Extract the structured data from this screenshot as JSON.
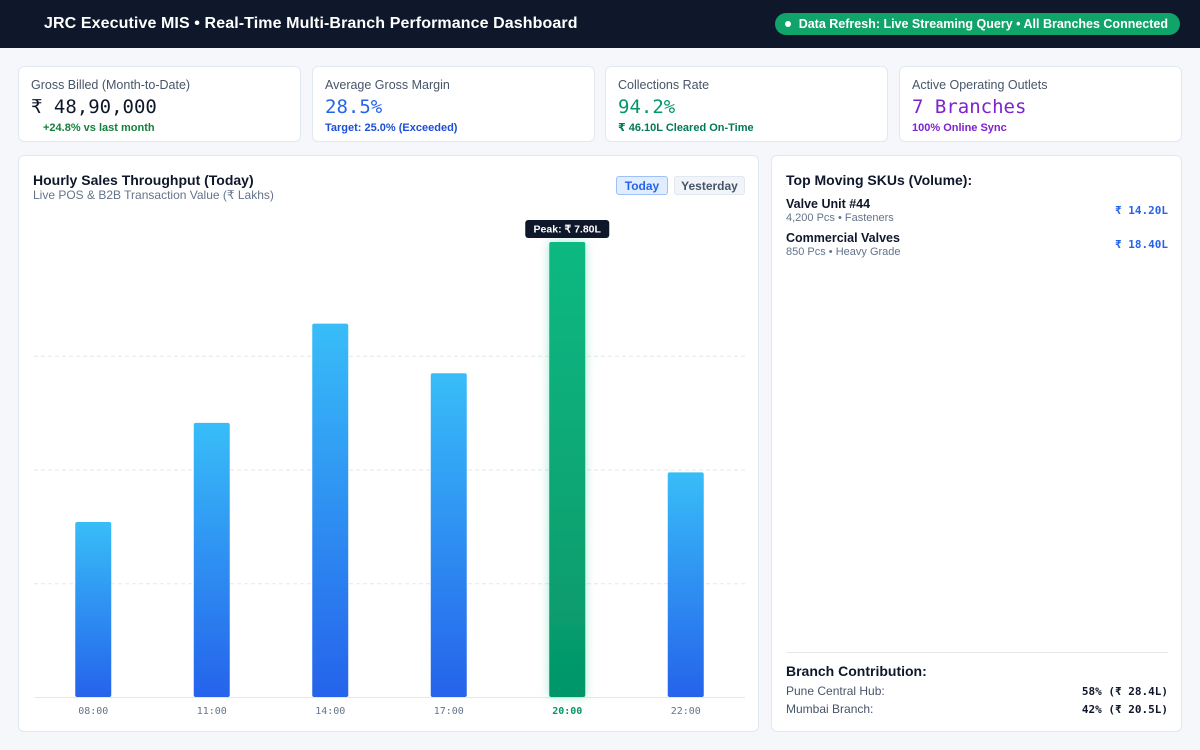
{
  "header": {
    "title": "JRC Executive MIS • Real-Time Multi-Branch Performance Dashboard",
    "status": "Data Refresh: Live Streaming Query • All Branches Connected"
  },
  "kpis": [
    {
      "label": "Gross Billed (Month-to-Date)",
      "value": "₹ 48,90,000",
      "sub": "+24.8% vs last month",
      "value_color": "#0f172a",
      "sub_color": "#15803d"
    },
    {
      "label": "Average Gross Margin",
      "value": "28.5%",
      "sub": "Target: 25.0% (Exceeded)",
      "value_color": "#2563eb",
      "sub_color": "#1d4ed8"
    },
    {
      "label": "Collections Rate",
      "value": "94.2%",
      "sub": "₹ 46.10L Cleared On-Time",
      "value_color": "#059669",
      "sub_color": "#047857"
    },
    {
      "label": "Active Operating Outlets",
      "value": "7 Branches",
      "sub": "100% Online Sync",
      "value_color": "#7e22ce",
      "sub_color": "#7e22ce"
    }
  ],
  "chart": {
    "title": "Hourly Sales Throughput (Today)",
    "subtitle": "Live POS & B2B Transaction Value (₹ Lakhs)",
    "toggles": {
      "today": "Today",
      "yesterday": "Yesterday"
    },
    "peak_label": "Peak: ₹ 7.80L"
  },
  "chart_data": {
    "type": "bar",
    "categories": [
      "08:00",
      "11:00",
      "14:00",
      "17:00",
      "20:00",
      "22:00"
    ],
    "values": [
      3.0,
      4.7,
      6.4,
      5.55,
      7.8,
      3.85
    ],
    "ylim": [
      0,
      7.8
    ],
    "highlight_index": 4,
    "grid": true,
    "bar_gradient": [
      "#38bdf8",
      "#2563eb"
    ],
    "highlight_gradient": [
      "#10b981",
      "#059669"
    ]
  },
  "skus": {
    "title": "Top Moving SKUs (Volume):",
    "items": [
      {
        "name": "Valve Unit #44",
        "meta": "4,200 Pcs • Fasteners",
        "value": "₹ 14.20L"
      },
      {
        "name": "Commercial Valves",
        "meta": "850 Pcs • Heavy Grade",
        "value": "₹ 18.40L"
      }
    ]
  },
  "branches": {
    "title": "Branch Contribution:",
    "items": [
      {
        "name": "Pune Central Hub:",
        "value": "58% (₹ 28.4L)"
      },
      {
        "name": "Mumbai Branch:",
        "value": "42% (₹ 20.5L)"
      }
    ]
  }
}
